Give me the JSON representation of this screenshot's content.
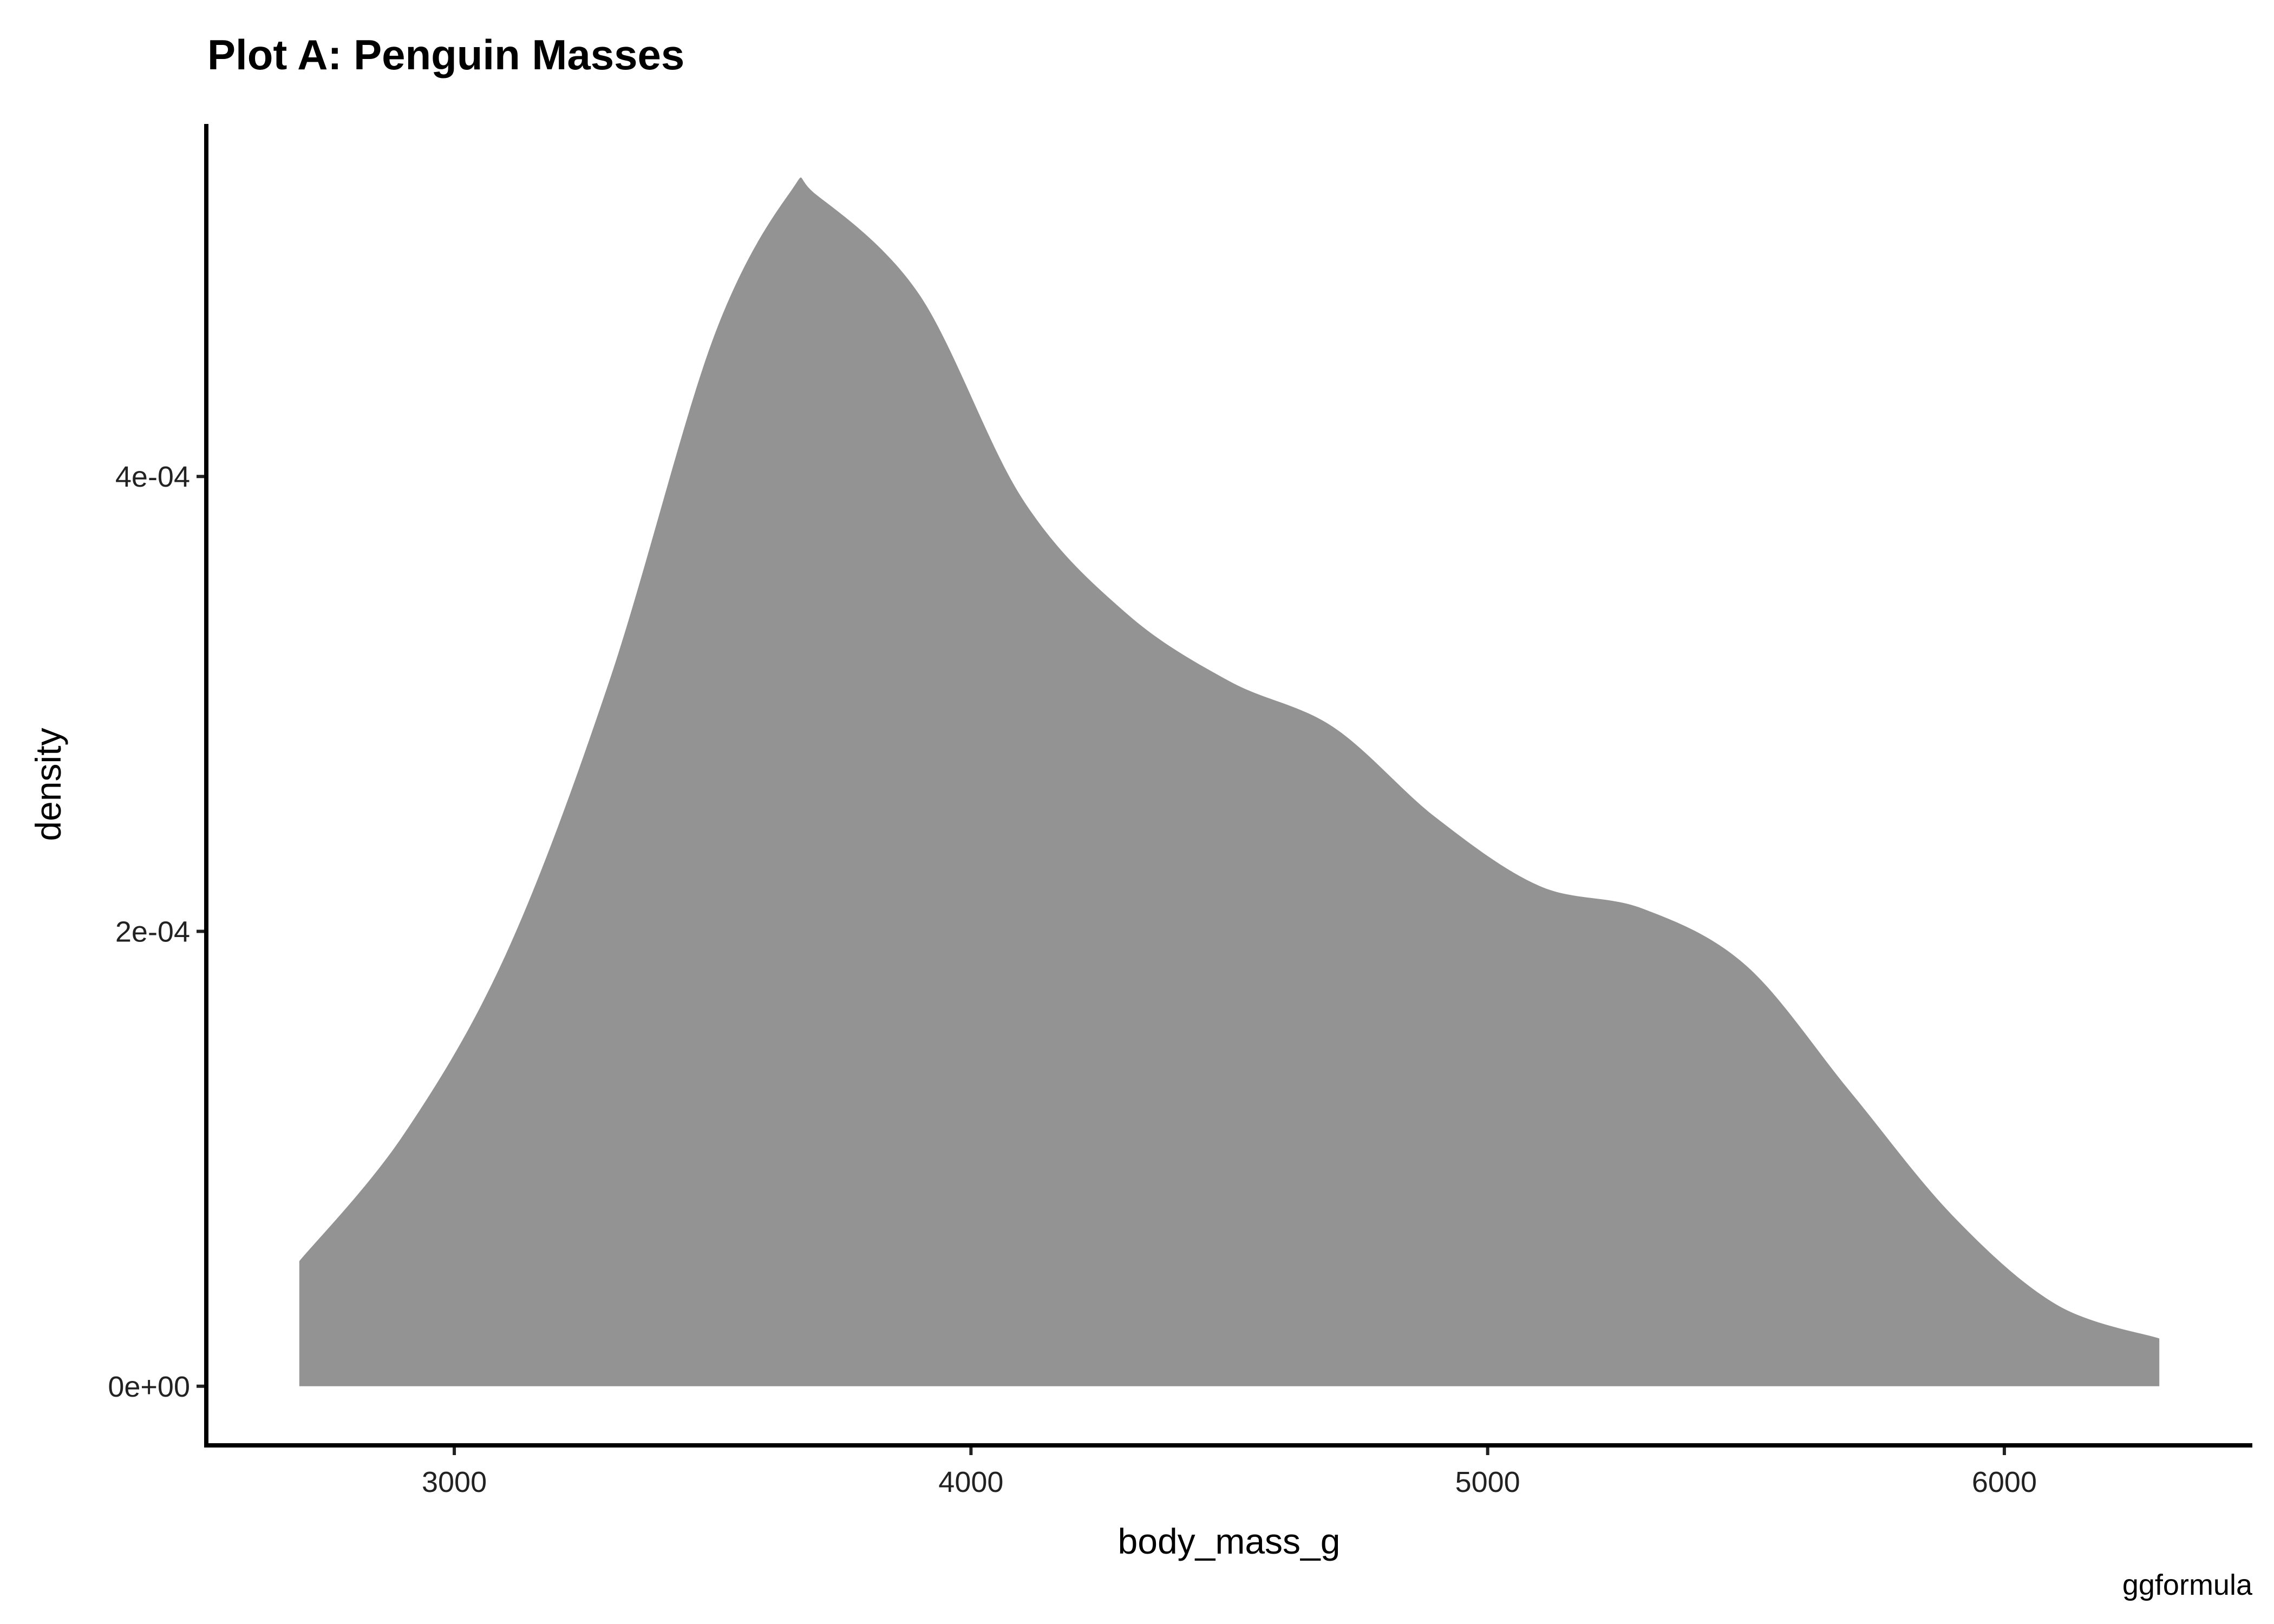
{
  "chart_data": {
    "type": "area",
    "subtype": "density",
    "title": "Plot A: Penguin Masses",
    "xlabel": "body_mass_g",
    "ylabel": "density",
    "caption": "ggformula",
    "xlim": [
      2520,
      6480
    ],
    "ylim": [
      -2.6e-05,
      0.000555
    ],
    "x_ticks": [
      3000,
      4000,
      5000,
      6000
    ],
    "x_tick_labels": [
      "3000",
      "4000",
      "5000",
      "6000"
    ],
    "y_ticks": [
      0,
      0.0002,
      0.0004
    ],
    "y_tick_labels": [
      "0e+00",
      "2e-04",
      "4e-04"
    ],
    "grid": false,
    "fill_color": "#939393",
    "series": [
      {
        "x": [
          2700,
          2900,
          3100,
          3300,
          3500,
          3650,
          3700,
          3900,
          4100,
          4300,
          4500,
          4700,
          4900,
          5100,
          5300,
          5500,
          5700,
          5900,
          6100,
          6300
        ],
        "y": [
          5.5e-05,
          0.00011,
          0.00019,
          0.00031,
          0.00046,
          0.000525,
          0.000524,
          0.00048,
          0.00039,
          0.00034,
          0.00031,
          0.00029,
          0.00025,
          0.00022,
          0.00021,
          0.000185,
          0.00013,
          7.5e-05,
          3.6e-05,
          2.1e-05
        ]
      }
    ]
  }
}
